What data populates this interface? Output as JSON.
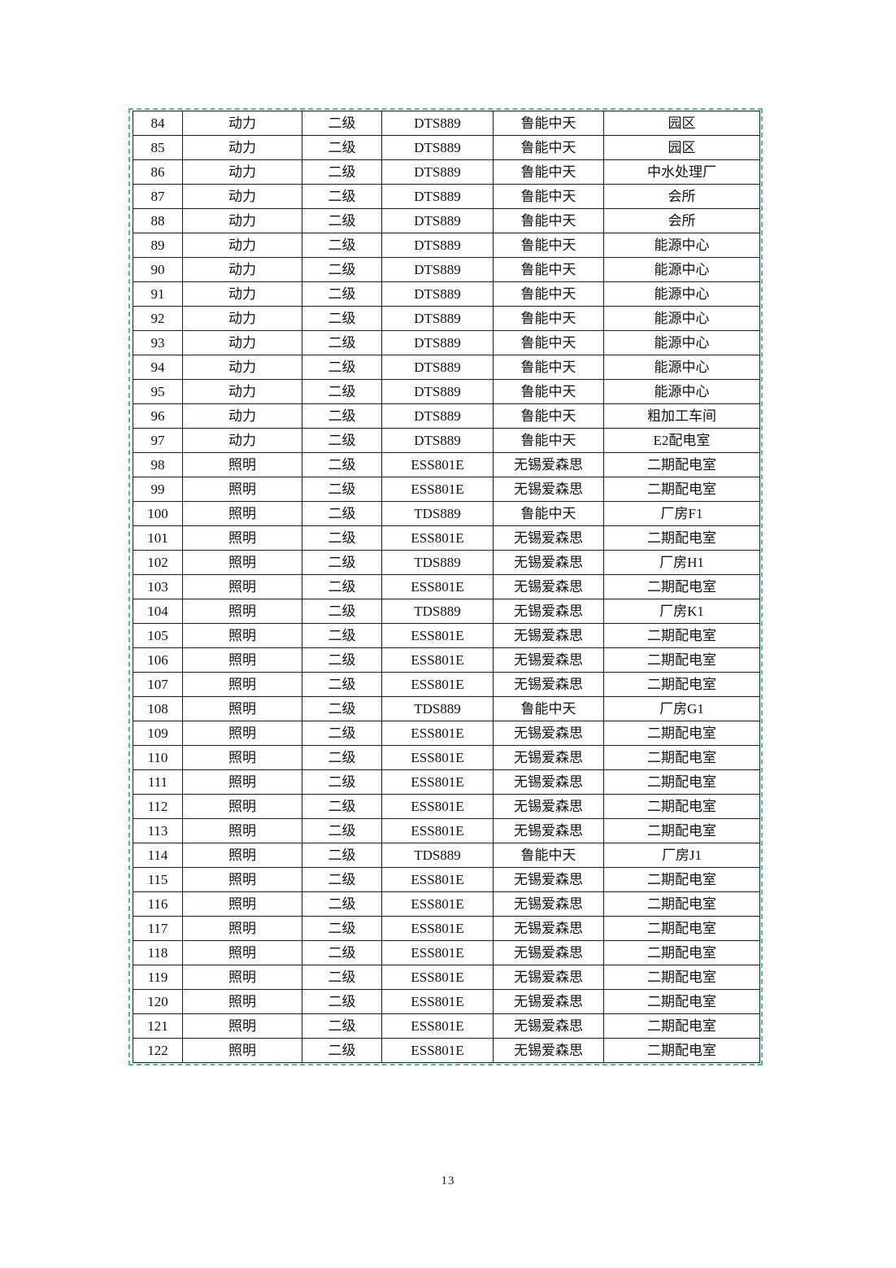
{
  "page": {
    "number": "13"
  },
  "colors": {
    "table_outer_dashed_border": "#43bf97",
    "table_grid_lines": "#1b1b1b",
    "text": "#111111",
    "page_background": "#ffffff"
  },
  "table": {
    "column_keys": [
      "index",
      "category",
      "level",
      "model",
      "manufacturer",
      "location"
    ],
    "rows": [
      [
        "84",
        "动力",
        "二级",
        "DTS889",
        "鲁能中天",
        "园区"
      ],
      [
        "85",
        "动力",
        "二级",
        "DTS889",
        "鲁能中天",
        "园区"
      ],
      [
        "86",
        "动力",
        "二级",
        "DTS889",
        "鲁能中天",
        "中水处理厂"
      ],
      [
        "87",
        "动力",
        "二级",
        "DTS889",
        "鲁能中天",
        "会所"
      ],
      [
        "88",
        "动力",
        "二级",
        "DTS889",
        "鲁能中天",
        "会所"
      ],
      [
        "89",
        "动力",
        "二级",
        "DTS889",
        "鲁能中天",
        "能源中心"
      ],
      [
        "90",
        "动力",
        "二级",
        "DTS889",
        "鲁能中天",
        "能源中心"
      ],
      [
        "91",
        "动力",
        "二级",
        "DTS889",
        "鲁能中天",
        "能源中心"
      ],
      [
        "92",
        "动力",
        "二级",
        "DTS889",
        "鲁能中天",
        "能源中心"
      ],
      [
        "93",
        "动力",
        "二级",
        "DTS889",
        "鲁能中天",
        "能源中心"
      ],
      [
        "94",
        "动力",
        "二级",
        "DTS889",
        "鲁能中天",
        "能源中心"
      ],
      [
        "95",
        "动力",
        "二级",
        "DTS889",
        "鲁能中天",
        "能源中心"
      ],
      [
        "96",
        "动力",
        "二级",
        "DTS889",
        "鲁能中天",
        "粗加工车间"
      ],
      [
        "97",
        "动力",
        "二级",
        "DTS889",
        "鲁能中天",
        "E2配电室"
      ],
      [
        "98",
        "照明",
        "二级",
        "ESS801E",
        "无锡爱森思",
        "二期配电室"
      ],
      [
        "99",
        "照明",
        "二级",
        "ESS801E",
        "无锡爱森思",
        "二期配电室"
      ],
      [
        "100",
        "照明",
        "二级",
        "TDS889",
        "鲁能中天",
        "厂房F1"
      ],
      [
        "101",
        "照明",
        "二级",
        "ESS801E",
        "无锡爱森思",
        "二期配电室"
      ],
      [
        "102",
        "照明",
        "二级",
        "TDS889",
        "无锡爱森思",
        "厂房H1"
      ],
      [
        "103",
        "照明",
        "二级",
        "ESS801E",
        "无锡爱森思",
        "二期配电室"
      ],
      [
        "104",
        "照明",
        "二级",
        "TDS889",
        "无锡爱森思",
        "厂房K1"
      ],
      [
        "105",
        "照明",
        "二级",
        "ESS801E",
        "无锡爱森思",
        "二期配电室"
      ],
      [
        "106",
        "照明",
        "二级",
        "ESS801E",
        "无锡爱森思",
        "二期配电室"
      ],
      [
        "107",
        "照明",
        "二级",
        "ESS801E",
        "无锡爱森思",
        "二期配电室"
      ],
      [
        "108",
        "照明",
        "二级",
        "TDS889",
        "鲁能中天",
        "厂房G1"
      ],
      [
        "109",
        "照明",
        "二级",
        "ESS801E",
        "无锡爱森思",
        "二期配电室"
      ],
      [
        "110",
        "照明",
        "二级",
        "ESS801E",
        "无锡爱森思",
        "二期配电室"
      ],
      [
        "111",
        "照明",
        "二级",
        "ESS801E",
        "无锡爱森思",
        "二期配电室"
      ],
      [
        "112",
        "照明",
        "二级",
        "ESS801E",
        "无锡爱森思",
        "二期配电室"
      ],
      [
        "113",
        "照明",
        "二级",
        "ESS801E",
        "无锡爱森思",
        "二期配电室"
      ],
      [
        "114",
        "照明",
        "二级",
        "TDS889",
        "鲁能中天",
        "厂房J1"
      ],
      [
        "115",
        "照明",
        "二级",
        "ESS801E",
        "无锡爱森思",
        "二期配电室"
      ],
      [
        "116",
        "照明",
        "二级",
        "ESS801E",
        "无锡爱森思",
        "二期配电室"
      ],
      [
        "117",
        "照明",
        "二级",
        "ESS801E",
        "无锡爱森思",
        "二期配电室"
      ],
      [
        "118",
        "照明",
        "二级",
        "ESS801E",
        "无锡爱森思",
        "二期配电室"
      ],
      [
        "119",
        "照明",
        "二级",
        "ESS801E",
        "无锡爱森思",
        "二期配电室"
      ],
      [
        "120",
        "照明",
        "二级",
        "ESS801E",
        "无锡爱森思",
        "二期配电室"
      ],
      [
        "121",
        "照明",
        "二级",
        "ESS801E",
        "无锡爱森思",
        "二期配电室"
      ],
      [
        "122",
        "照明",
        "二级",
        "ESS801E",
        "无锡爱森思",
        "二期配电室"
      ]
    ]
  }
}
